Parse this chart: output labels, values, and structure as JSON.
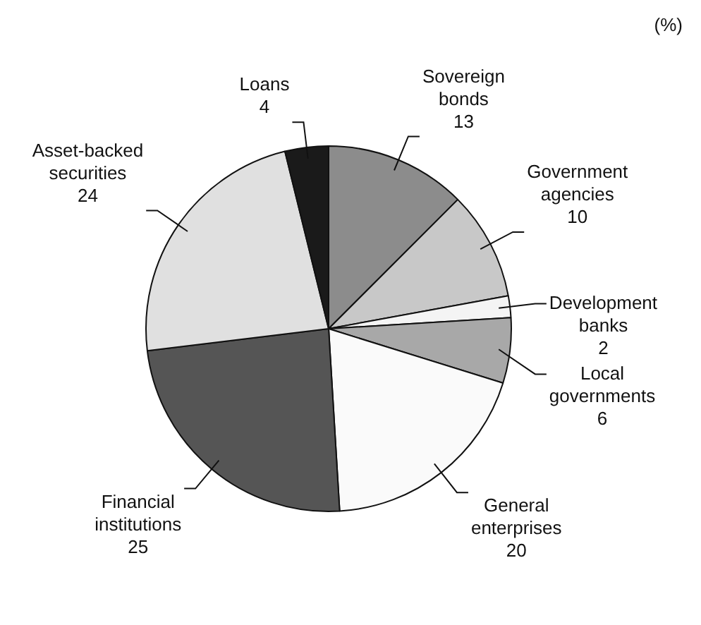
{
  "chart_data": {
    "type": "pie",
    "categories": [
      "Sovereign bonds",
      "Government agencies",
      "Development banks",
      "Local governments",
      "General enterprises",
      "Financial institutions",
      "Asset-backed securities",
      "Loans"
    ],
    "values": [
      13,
      10,
      2,
      6,
      20,
      25,
      24,
      4
    ],
    "colors": [
      "#8c8c8c",
      "#c8c8c8",
      "#f4f4f4",
      "#a8a8a8",
      "#fafafa",
      "#555555",
      "#e0e0e0",
      "#1a1a1a"
    ],
    "annotations": [
      "(%)"
    ],
    "data_labels": true,
    "legend": false
  }
}
